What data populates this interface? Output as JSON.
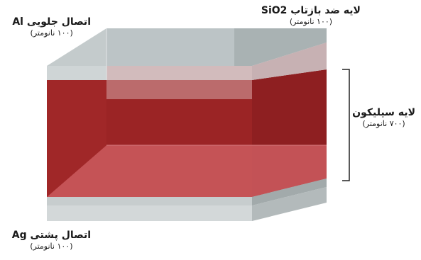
{
  "labels": {
    "front_contact": {
      "title": "اتصال جلویی Al",
      "thickness": "(۱۰۰ نانومتر)"
    },
    "arc_layer": {
      "title": "لایه ضد بازتاب SiO2",
      "thickness": "(۱۰۰ نانومتر)"
    },
    "silicon_layer": {
      "title": "لایه سیلیکون",
      "thickness": "(۷۰۰ نانومتر)"
    },
    "back_contact": {
      "title": "اتصال پشتی Ag",
      "thickness": "(۱۰۰ نانومتر)"
    }
  },
  "colors": {
    "silicon_front": "#9b2425",
    "silicon_side": "#b52c2e",
    "silicon_bottom_face": "#cc5c5f",
    "contact_gray": "#b9c0c1",
    "arc_pink": "#d6a6a8",
    "bracket": "#222222"
  }
}
